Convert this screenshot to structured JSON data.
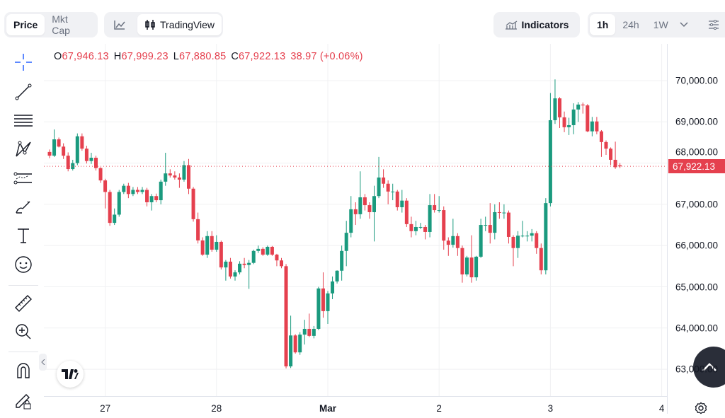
{
  "topbar": {
    "metric_tabs": [
      {
        "label": "Price",
        "active": true
      },
      {
        "label": "Mkt Cap",
        "active": false
      }
    ],
    "chart_type_tabs": [
      {
        "icon": "line-chart-icon",
        "label": ""
      },
      {
        "icon": "candles-icon",
        "label": "TradingView",
        "active": true
      }
    ],
    "indicators_label": "Indicators",
    "timeframes": [
      {
        "label": "1h",
        "active": true
      },
      {
        "label": "24h"
      },
      {
        "label": "1W"
      }
    ]
  },
  "legend": {
    "o_key": "O",
    "o": "67,946.13",
    "h_key": "H",
    "h": "67,999.23",
    "l_key": "L",
    "l": "67,880.85",
    "c_key": "C",
    "c": "67,922.13",
    "change": "38.97 (+0.06%)"
  },
  "toolbar": [
    "crosshair-icon",
    "trend-line-icon",
    "horizontal-lines-icon",
    "pattern-icon",
    "forecast-icon",
    "brush-icon",
    "text-icon",
    "emoji-icon",
    "ruler-icon",
    "zoom-in-icon",
    "magnet-icon",
    "lock-pencil-icon"
  ],
  "colors": {
    "up": "#1a9a7e",
    "down": "#e5404e",
    "grid": "#f0f1f3"
  },
  "chart_data": {
    "type": "candlestick",
    "interval": "1h",
    "last_price_label": "67,922.13",
    "y_ticks": [
      {
        "value": 70000,
        "label": "70,000.00"
      },
      {
        "value": 69000,
        "label": "69,000.00"
      },
      {
        "value": 68000,
        "label": "68,000.00"
      },
      {
        "value": 67000,
        "label": "67,000.00"
      },
      {
        "value": 66000,
        "label": "66,000.00"
      },
      {
        "value": 65000,
        "label": "65,000.00"
      },
      {
        "value": 64000,
        "label": "64,000.00"
      },
      {
        "value": 63000,
        "label": "63,000.00"
      }
    ],
    "x_ticks": [
      {
        "hour": 12,
        "label": "27"
      },
      {
        "hour": 36,
        "label": "28"
      },
      {
        "hour": 60,
        "label": "Mar",
        "bold": true
      },
      {
        "hour": 84,
        "label": "2"
      },
      {
        "hour": 108,
        "label": "3"
      },
      {
        "hour": 132,
        "label": "4"
      }
    ],
    "ylim": [
      62500,
      70500
    ],
    "last_price": 67922.13,
    "candles_ohlc": [
      [
        68270,
        68330,
        68120,
        68180
      ],
      [
        68180,
        68816,
        68150,
        68576
      ],
      [
        68576,
        68620,
        68380,
        68400
      ],
      [
        68400,
        68480,
        68100,
        68180
      ],
      [
        68180,
        68260,
        67800,
        67855
      ],
      [
        67855,
        68080,
        67820,
        68000
      ],
      [
        68000,
        68720,
        67950,
        68650
      ],
      [
        68650,
        68720,
        68300,
        68350
      ],
      [
        68350,
        68420,
        67990,
        68050
      ],
      [
        68050,
        68250,
        67980,
        68130
      ],
      [
        68130,
        68180,
        67820,
        67880
      ],
      [
        67880,
        67900,
        67520,
        67580
      ],
      [
        67580,
        67620,
        66900,
        67300
      ],
      [
        67300,
        67350,
        66480,
        66550
      ],
      [
        66550,
        66900,
        66500,
        66750
      ],
      [
        66750,
        67350,
        66700,
        67300
      ],
      [
        67300,
        67500,
        67250,
        67450
      ],
      [
        67450,
        67520,
        67150,
        67250
      ],
      [
        67250,
        67420,
        67200,
        67350
      ],
      [
        67350,
        67420,
        67250,
        67300
      ],
      [
        67300,
        67420,
        67250,
        67350
      ],
      [
        67350,
        67400,
        66950,
        67050
      ],
      [
        67050,
        67250,
        66850,
        67200
      ],
      [
        67200,
        67260,
        67050,
        67100
      ],
      [
        67100,
        67600,
        67000,
        67550
      ],
      [
        67550,
        68250,
        67450,
        67750
      ],
      [
        67750,
        67850,
        67650,
        67700
      ],
      [
        67700,
        67800,
        67600,
        67650
      ],
      [
        67650,
        67750,
        67400,
        67600
      ],
      [
        67600,
        68050,
        67550,
        67950
      ],
      [
        67950,
        68100,
        67250,
        67380
      ],
      [
        67380,
        67420,
        66580,
        66640
      ],
      [
        66640,
        66800,
        66050,
        66125
      ],
      [
        66125,
        66200,
        65750,
        65780
      ],
      [
        65780,
        66350,
        65700,
        66230
      ],
      [
        66230,
        66350,
        65850,
        65900
      ],
      [
        65900,
        66250,
        65850,
        66090
      ],
      [
        66090,
        66120,
        65420,
        65470
      ],
      [
        65470,
        65650,
        65150,
        65610
      ],
      [
        65610,
        65700,
        65200,
        65250
      ],
      [
        65250,
        65400,
        65150,
        65350
      ],
      [
        65350,
        65620,
        65300,
        65560
      ],
      [
        65560,
        65700,
        65450,
        65530
      ],
      [
        65530,
        65650,
        64950,
        65580
      ],
      [
        65580,
        65900,
        65550,
        65870
      ],
      [
        65870,
        66000,
        65820,
        65920
      ],
      [
        65920,
        65960,
        65750,
        65780
      ],
      [
        65780,
        66000,
        65750,
        65970
      ],
      [
        65970,
        65990,
        65750,
        65780
      ],
      [
        65780,
        65800,
        65500,
        65640
      ],
      [
        65640,
        65700,
        65450,
        65500
      ],
      [
        65500,
        65550,
        63020,
        63070
      ],
      [
        63070,
        64300,
        63030,
        63820
      ],
      [
        63820,
        63850,
        63380,
        63410
      ],
      [
        63410,
        63900,
        63350,
        63840
      ],
      [
        63840,
        64200,
        63600,
        63980
      ],
      [
        63980,
        64350,
        63780,
        63810
      ],
      [
        63810,
        64050,
        63750,
        63980
      ],
      [
        63980,
        65000,
        63950,
        64960
      ],
      [
        64960,
        65350,
        64250,
        64410
      ],
      [
        64410,
        64900,
        64100,
        64840
      ],
      [
        64840,
        65250,
        64700,
        65130
      ],
      [
        65130,
        65400,
        65080,
        65390
      ],
      [
        65390,
        66000,
        65150,
        65870
      ],
      [
        65870,
        66600,
        65500,
        66310
      ],
      [
        66310,
        67200,
        66200,
        66880
      ],
      [
        66880,
        67050,
        66500,
        66760
      ],
      [
        66760,
        67800,
        66650,
        67170
      ],
      [
        67170,
        67250,
        66850,
        66980
      ],
      [
        66980,
        67050,
        66650,
        66810
      ],
      [
        66810,
        67450,
        66100,
        67200
      ],
      [
        67200,
        68150,
        67150,
        67650
      ],
      [
        67650,
        67850,
        67400,
        67500
      ],
      [
        67500,
        67580,
        67000,
        67310
      ],
      [
        67310,
        67500,
        67100,
        67310
      ],
      [
        67310,
        67350,
        66850,
        66930
      ],
      [
        66930,
        67350,
        66800,
        67090
      ],
      [
        67090,
        67150,
        66450,
        66520
      ],
      [
        66520,
        66700,
        66200,
        66350
      ],
      [
        66350,
        66600,
        66250,
        66450
      ],
      [
        66450,
        66550,
        66400,
        66450
      ],
      [
        66450,
        66500,
        66150,
        66330
      ],
      [
        66330,
        67250,
        66200,
        66980
      ],
      [
        66980,
        67250,
        66800,
        66860
      ],
      [
        66860,
        67200,
        66800,
        66860
      ],
      [
        66860,
        66950,
        65900,
        66120
      ],
      [
        66120,
        66200,
        65750,
        66020
      ],
      [
        66020,
        66650,
        65950,
        66230
      ],
      [
        66230,
        66300,
        65750,
        65940
      ],
      [
        65940,
        66000,
        65100,
        65300
      ],
      [
        65300,
        65750,
        65250,
        65710
      ],
      [
        65710,
        66250,
        65100,
        65230
      ],
      [
        65230,
        65750,
        65150,
        65730
      ],
      [
        65730,
        66650,
        65700,
        66500
      ],
      [
        66500,
        66700,
        66350,
        66500
      ],
      [
        66500,
        67030,
        66050,
        66310
      ],
      [
        66310,
        67000,
        66150,
        66810
      ],
      [
        66810,
        67050,
        66650,
        66800
      ],
      [
        66800,
        67000,
        66650,
        66800
      ],
      [
        66800,
        66850,
        66050,
        66210
      ],
      [
        66210,
        66250,
        65500,
        65940
      ],
      [
        65940,
        66350,
        65700,
        66240
      ],
      [
        66240,
        66600,
        66200,
        66240
      ],
      [
        66240,
        66350,
        66100,
        66240
      ],
      [
        66240,
        66400,
        66100,
        66300
      ],
      [
        66300,
        66350,
        65800,
        65940
      ],
      [
        65940,
        66050,
        65300,
        65400
      ],
      [
        65400,
        67150,
        65300,
        67030
      ],
      [
        67030,
        69700,
        66950,
        69040
      ],
      [
        69040,
        70030,
        68950,
        69570
      ],
      [
        69570,
        69600,
        68850,
        69110
      ],
      [
        69110,
        69250,
        68750,
        68870
      ],
      [
        68870,
        69100,
        68680,
        68920
      ],
      [
        68920,
        69450,
        68700,
        69300
      ],
      [
        69300,
        69480,
        69000,
        69420
      ],
      [
        69420,
        69470,
        69200,
        69400
      ],
      [
        69400,
        69430,
        68750,
        68770
      ],
      [
        68770,
        69120,
        68650,
        69010
      ],
      [
        69010,
        69120,
        68700,
        68770
      ],
      [
        68770,
        68800,
        68150,
        68510
      ],
      [
        68510,
        68550,
        68200,
        68350
      ],
      [
        68350,
        68380,
        67950,
        68080
      ],
      [
        68080,
        68520,
        67860,
        67900
      ],
      [
        67946.13,
        67999.23,
        67880.85,
        67922.13
      ]
    ]
  }
}
